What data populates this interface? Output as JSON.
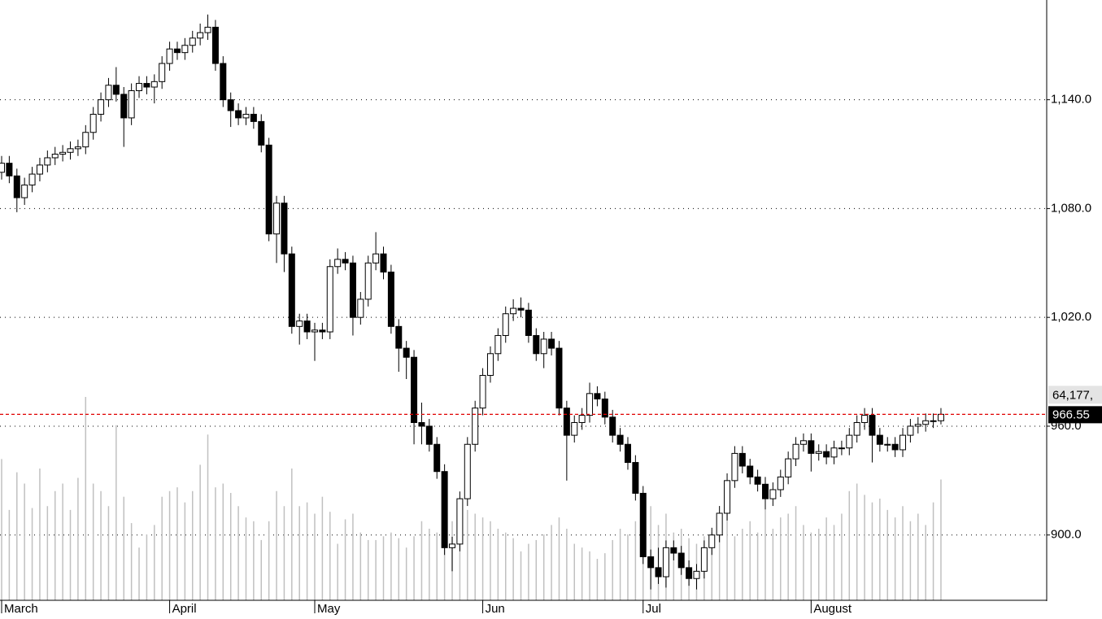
{
  "chart_data": {
    "type": "candlestick",
    "open": [
      1100,
      1105,
      1098,
      1086,
      1093,
      1099,
      1104,
      1108,
      1110,
      1111,
      1113,
      1114,
      1122,
      1132,
      1140,
      1148,
      1143,
      1130,
      1145,
      1149,
      1147,
      1150,
      1160,
      1168,
      1166,
      1170,
      1174,
      1177,
      1180,
      1160,
      1140,
      1134,
      1130,
      1132,
      1128,
      1115,
      1066,
      1083,
      1055,
      1015,
      1018,
      1012,
      1013,
      1012,
      1048,
      1052,
      1050,
      1020,
      1030,
      1050,
      1055,
      1045,
      1015,
      1003,
      998,
      962,
      960,
      950,
      935,
      893,
      895,
      920,
      950,
      970,
      988,
      1000,
      1010,
      1022,
      1025,
      1024,
      1010,
      1000,
      1008,
      1003,
      970,
      955,
      962,
      966,
      978,
      975,
      965,
      955,
      950,
      940,
      923,
      888,
      882,
      877,
      893,
      890,
      882,
      876,
      880,
      893,
      900,
      912,
      930,
      945,
      938,
      932,
      928,
      920,
      925,
      932,
      942,
      950,
      952,
      945,
      946,
      943,
      948,
      948,
      955,
      962,
      966,
      955,
      950,
      950,
      947,
      955,
      960,
      961,
      963,
      963
    ],
    "high": [
      1109,
      1109,
      1102,
      1097,
      1103,
      1108,
      1112,
      1114,
      1115,
      1117,
      1118,
      1126,
      1136,
      1144,
      1152,
      1158,
      1147,
      1149,
      1153,
      1153,
      1154,
      1164,
      1172,
      1172,
      1174,
      1178,
      1182,
      1187,
      1184,
      1164,
      1144,
      1138,
      1136,
      1136,
      1132,
      1119,
      1087,
      1087,
      1059,
      1022,
      1022,
      1017,
      1017,
      1052,
      1058,
      1056,
      1054,
      1034,
      1054,
      1067,
      1059,
      1049,
      1019,
      1007,
      1002,
      973,
      964,
      954,
      939,
      899,
      924,
      954,
      974,
      992,
      1004,
      1014,
      1026,
      1030,
      1031,
      1028,
      1014,
      1012,
      1012,
      1007,
      974,
      966,
      970,
      984,
      982,
      979,
      969,
      959,
      954,
      944,
      927,
      892,
      893,
      897,
      897,
      894,
      886,
      884,
      897,
      904,
      916,
      934,
      949,
      949,
      942,
      936,
      932,
      929,
      936,
      946,
      954,
      956,
      956,
      950,
      950,
      952,
      952,
      959,
      966,
      970,
      970,
      959,
      954,
      954,
      959,
      964,
      965,
      967,
      967,
      970
    ],
    "low": [
      1096,
      1094,
      1078,
      1082,
      1089,
      1095,
      1100,
      1104,
      1106,
      1107,
      1109,
      1110,
      1118,
      1128,
      1136,
      1139,
      1114,
      1126,
      1141,
      1143,
      1138,
      1146,
      1156,
      1162,
      1162,
      1166,
      1170,
      1173,
      1156,
      1136,
      1125,
      1126,
      1126,
      1124,
      1111,
      1062,
      1050,
      1045,
      1011,
      1005,
      1008,
      996,
      1008,
      1008,
      1044,
      1046,
      1010,
      1016,
      1026,
      1046,
      1041,
      1011,
      990,
      986,
      950,
      950,
      946,
      931,
      889,
      880,
      891,
      916,
      946,
      966,
      984,
      996,
      1006,
      1018,
      1020,
      1006,
      996,
      992,
      999,
      966,
      930,
      951,
      958,
      962,
      971,
      961,
      951,
      946,
      936,
      919,
      884,
      870,
      873,
      871,
      886,
      878,
      872,
      870,
      876,
      889,
      896,
      908,
      926,
      934,
      928,
      924,
      914,
      916,
      921,
      928,
      938,
      946,
      935,
      941,
      939,
      939,
      944,
      944,
      951,
      958,
      940,
      946,
      946,
      943,
      943,
      951,
      956,
      957,
      959,
      961
    ],
    "close": [
      1105,
      1098,
      1086,
      1093,
      1099,
      1104,
      1108,
      1110,
      1111,
      1113,
      1114,
      1122,
      1132,
      1140,
      1148,
      1143,
      1130,
      1145,
      1149,
      1147,
      1150,
      1160,
      1168,
      1166,
      1170,
      1174,
      1177,
      1180,
      1160,
      1140,
      1134,
      1130,
      1132,
      1128,
      1115,
      1066,
      1083,
      1055,
      1015,
      1018,
      1012,
      1013,
      1012,
      1048,
      1052,
      1050,
      1020,
      1030,
      1050,
      1055,
      1045,
      1015,
      1003,
      998,
      962,
      960,
      950,
      935,
      893,
      895,
      920,
      950,
      970,
      988,
      1000,
      1010,
      1022,
      1025,
      1024,
      1010,
      1000,
      1008,
      1003,
      970,
      955,
      962,
      966,
      978,
      975,
      965,
      955,
      950,
      940,
      923,
      888,
      882,
      877,
      893,
      890,
      882,
      876,
      880,
      893,
      900,
      912,
      930,
      945,
      938,
      932,
      928,
      920,
      925,
      932,
      942,
      950,
      952,
      945,
      946,
      943,
      948,
      948,
      955,
      962,
      966,
      955,
      950,
      950,
      947,
      955,
      960,
      961,
      963,
      963,
      966.55
    ],
    "volume": [
      75000,
      48000,
      68000,
      62000,
      49000,
      70000,
      50000,
      58000,
      62000,
      48000,
      65000,
      108000,
      62000,
      58000,
      50000,
      93000,
      55000,
      41000,
      28000,
      35000,
      40000,
      55000,
      58000,
      60000,
      52000,
      58000,
      72000,
      88000,
      60000,
      62000,
      57000,
      50000,
      44000,
      42000,
      32000,
      42000,
      58000,
      50000,
      70000,
      50000,
      52000,
      46000,
      55000,
      47000,
      30000,
      43000,
      46000,
      36000,
      32000,
      32000,
      34000,
      36000,
      33000,
      28000,
      34000,
      42000,
      38000,
      36000,
      40000,
      42000,
      38000,
      48000,
      46000,
      44000,
      42000,
      38000,
      36000,
      33000,
      26000,
      30000,
      32000,
      35000,
      40000,
      44000,
      38000,
      30000,
      28000,
      26000,
      22000,
      25000,
      32000,
      38000,
      35000,
      42000,
      38000,
      50000,
      40000,
      46000,
      36000,
      38000,
      33000,
      30000,
      34000,
      36000,
      42000,
      48000,
      34000,
      38000,
      42000,
      36000,
      48000,
      38000,
      44000,
      46000,
      50000,
      40000,
      36000,
      38000,
      44000,
      40000,
      46000,
      58000,
      62000,
      56000,
      52000,
      54000,
      48000,
      44000,
      50000,
      42000,
      46000,
      40000,
      52000,
      64177
    ],
    "ylim": [
      864,
      1195
    ],
    "yticks": [
      {
        "value": 900,
        "label": "900.0"
      },
      {
        "value": 960,
        "label": "960.0"
      },
      {
        "value": 1020,
        "label": "1,020.0"
      },
      {
        "value": 1080,
        "label": "1,080.0"
      },
      {
        "value": 1140,
        "label": "1,140.0"
      }
    ],
    "xticks": [
      {
        "value": 0,
        "label": "March"
      },
      {
        "value": 22,
        "label": "April"
      },
      {
        "value": 41,
        "label": "May"
      },
      {
        "value": 63,
        "label": "Jun"
      },
      {
        "value": 84,
        "label": "Jul"
      },
      {
        "value": 106,
        "label": "August"
      }
    ],
    "grid": true,
    "last_price": 966.55,
    "volume_label": "64,177,"
  }
}
